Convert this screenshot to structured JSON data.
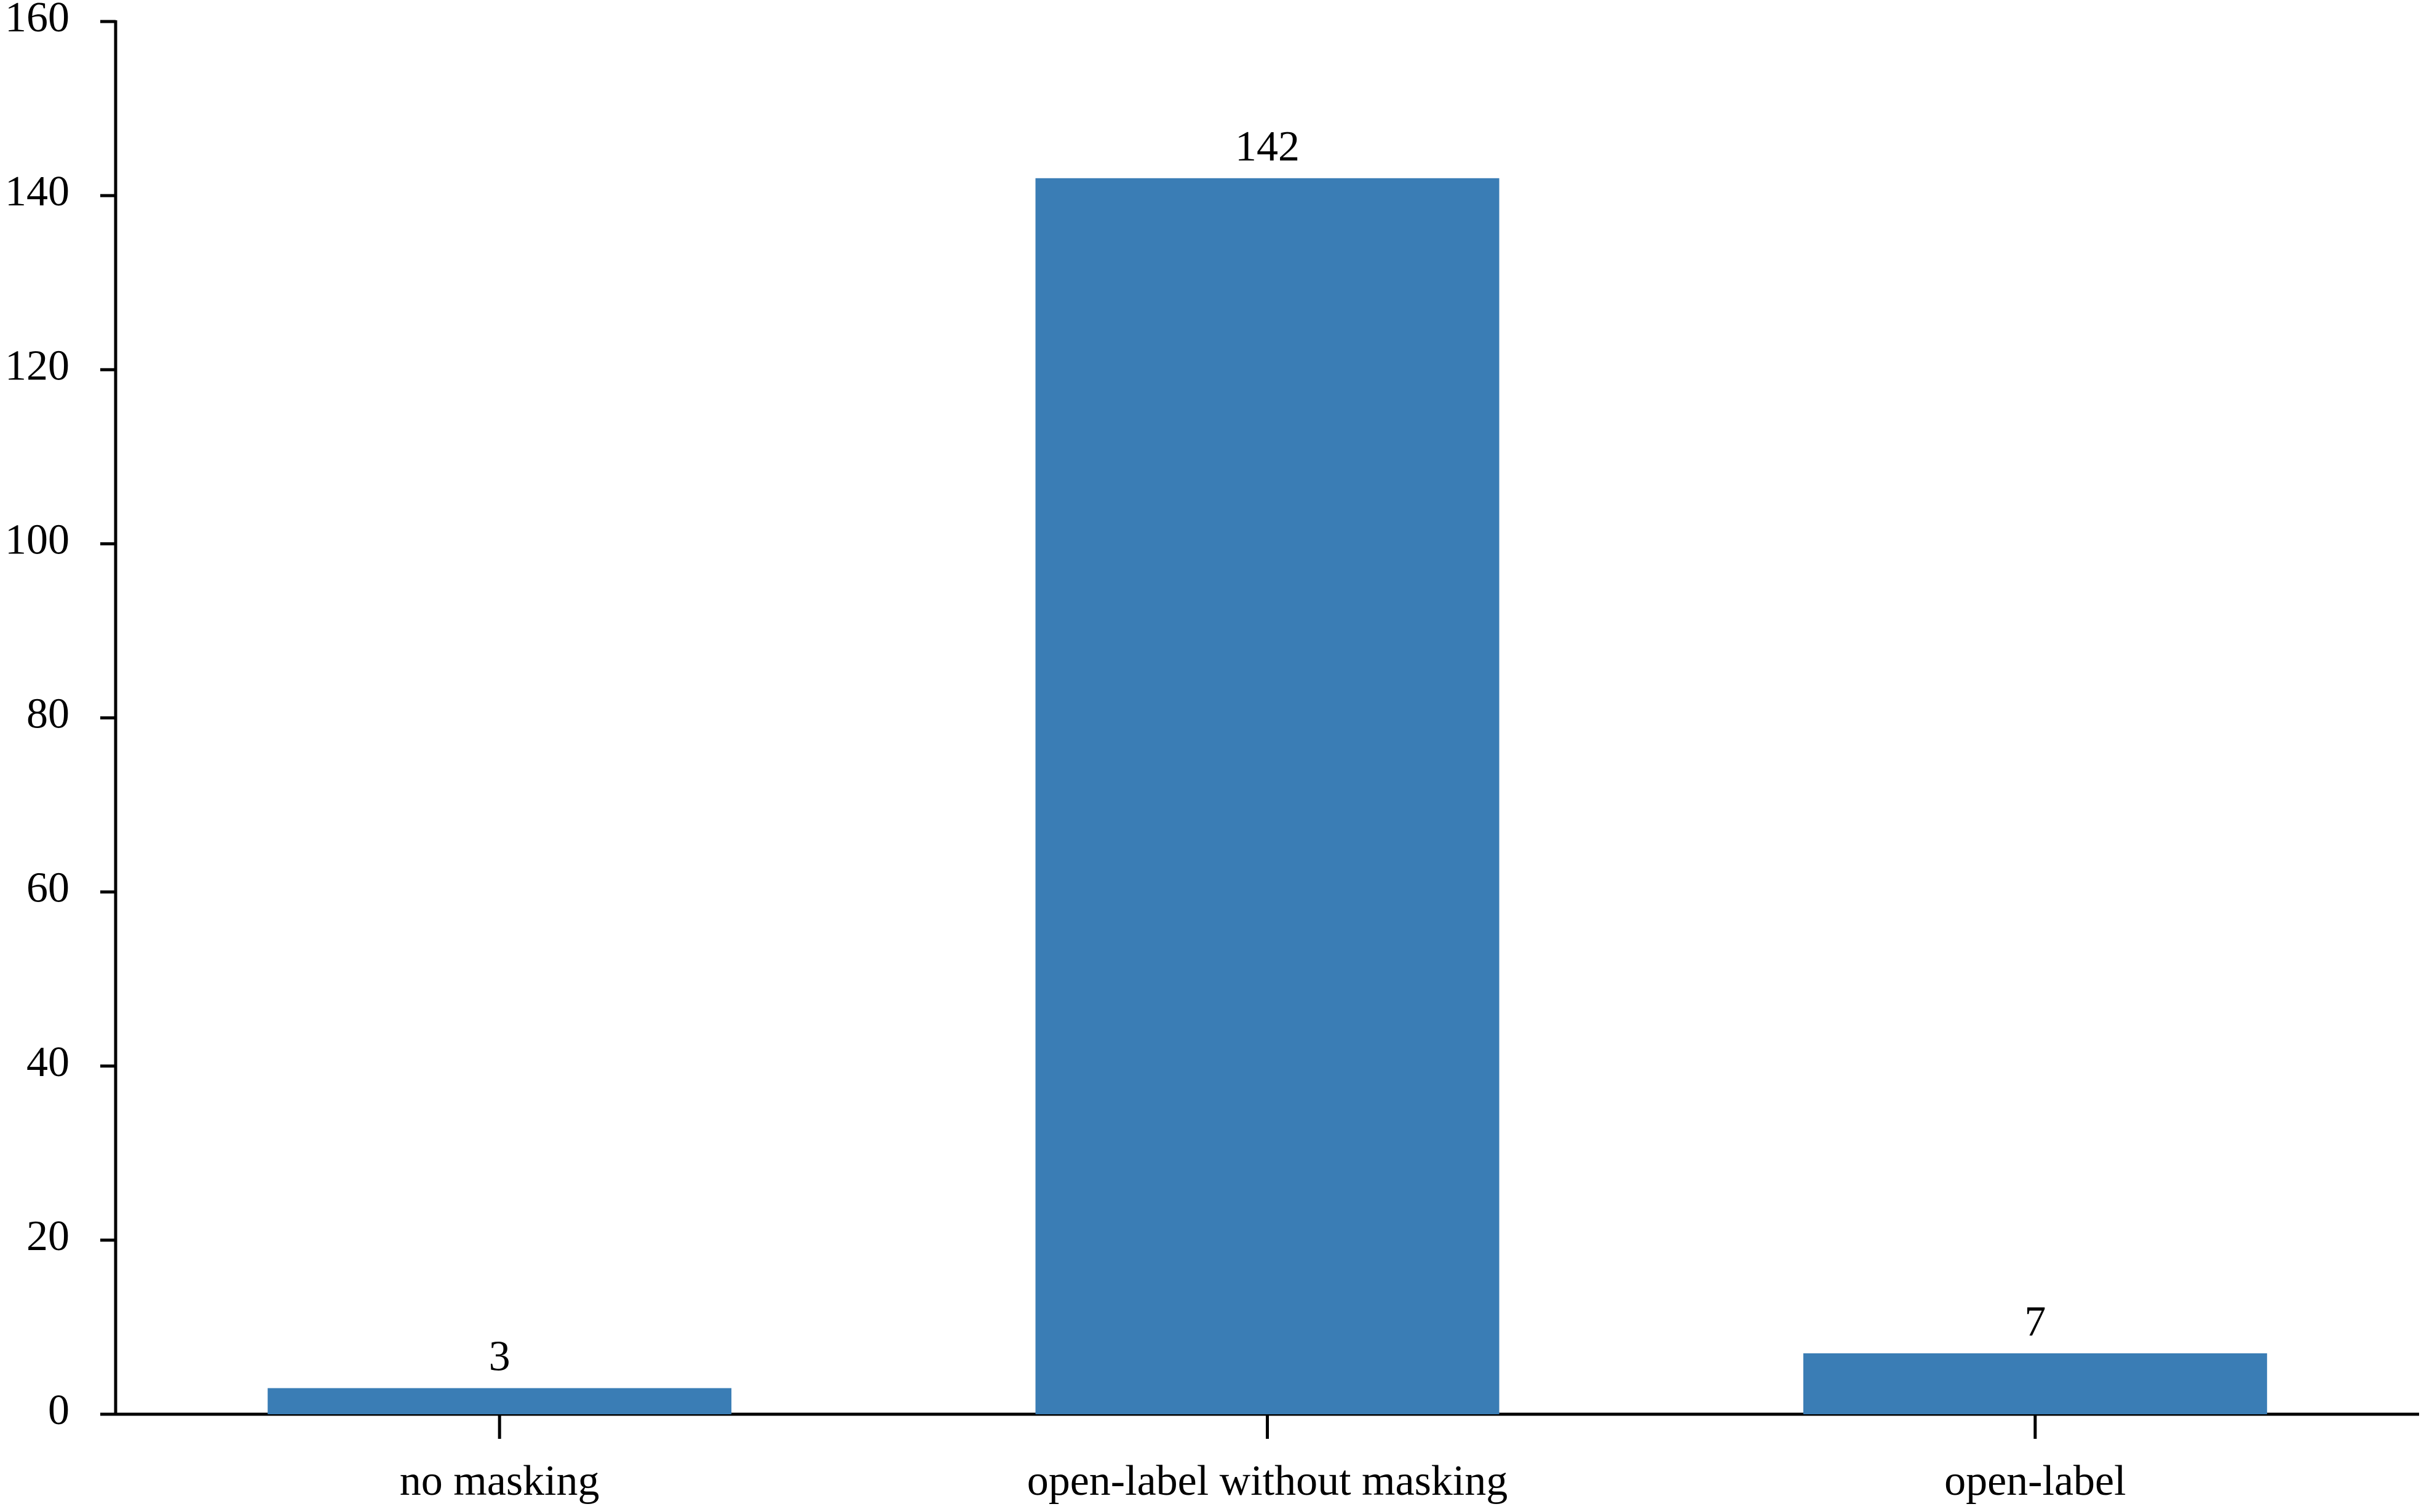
{
  "chart_data": {
    "type": "bar",
    "categories": [
      "no masking",
      "open-label without masking",
      "open-label"
    ],
    "values": [
      3,
      142,
      7
    ],
    "color": "#3a7db5",
    "ylim": [
      0,
      160
    ],
    "yticks": [
      0,
      20,
      40,
      60,
      80,
      100,
      120,
      140,
      160
    ],
    "grid": false
  }
}
